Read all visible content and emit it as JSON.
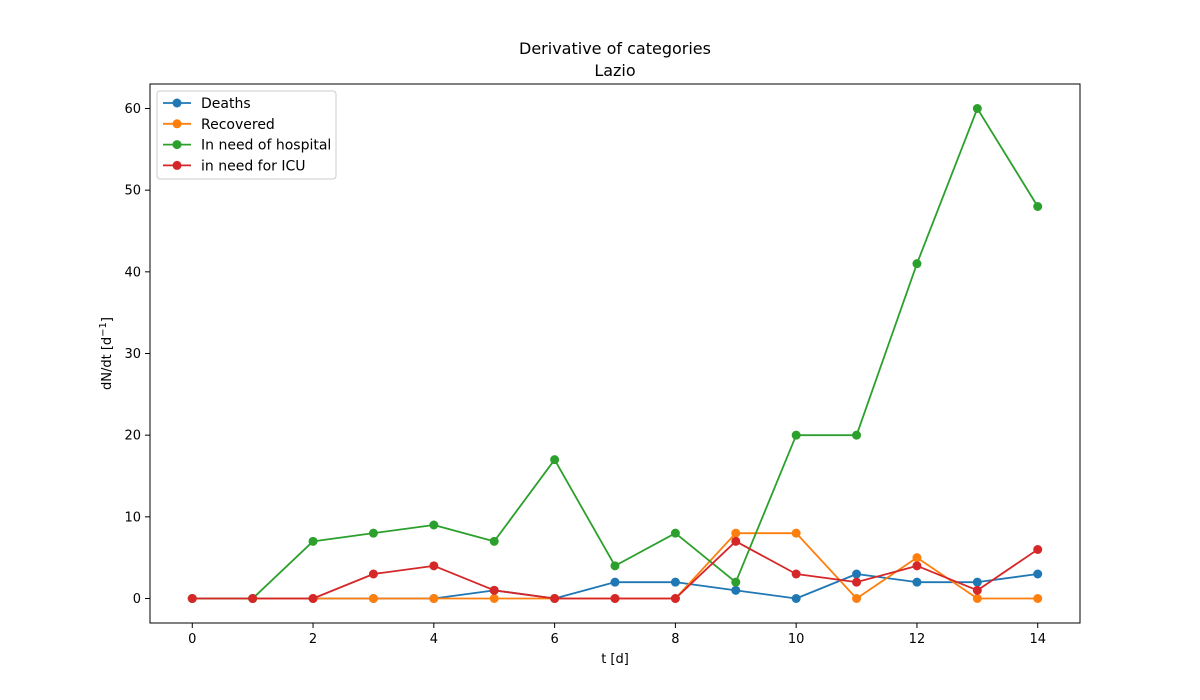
{
  "chart_data": {
    "type": "line",
    "title": "Derivative of categories",
    "subtitle": "Lazio",
    "xlabel": "t [d]",
    "ylabel": "dN/dt [d",
    "ylabel_sup": "−1",
    "ylabel_end": "]",
    "xlim": [
      -0.7,
      14.7
    ],
    "ylim": [
      -3,
      63
    ],
    "xticks": [
      0,
      2,
      4,
      6,
      8,
      10,
      12,
      14
    ],
    "yticks": [
      0,
      10,
      20,
      30,
      40,
      50,
      60
    ],
    "grid": false,
    "legend_position": "top-left",
    "x": [
      0,
      1,
      2,
      3,
      4,
      5,
      6,
      7,
      8,
      9,
      10,
      11,
      12,
      13,
      14
    ],
    "series": [
      {
        "name": "Deaths",
        "color": "#1f77b4",
        "values": [
          0,
          0,
          0,
          0,
          0,
          1,
          0,
          2,
          2,
          1,
          0,
          3,
          2,
          2,
          3
        ]
      },
      {
        "name": "Recovered",
        "color": "#ff7f0e",
        "values": [
          0,
          0,
          0,
          0,
          0,
          0,
          0,
          0,
          0,
          8,
          8,
          0,
          5,
          0,
          0
        ]
      },
      {
        "name": "In need of hospital",
        "color": "#2ca02c",
        "values": [
          0,
          0,
          7,
          8,
          9,
          7,
          17,
          4,
          8,
          2,
          20,
          20,
          41,
          60,
          48
        ]
      },
      {
        "name": "in need for ICU",
        "color": "#d62728",
        "values": [
          0,
          0,
          0,
          3,
          4,
          1,
          0,
          0,
          0,
          7,
          3,
          2,
          4,
          1,
          6
        ]
      }
    ]
  }
}
